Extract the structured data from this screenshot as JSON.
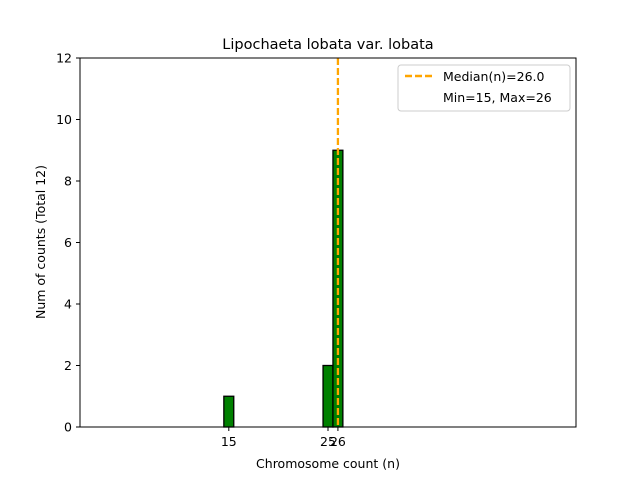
{
  "chart_data": {
    "type": "bar",
    "title": "Lipochaeta lobata var. lobata",
    "xlabel": "Chromosome count (n)",
    "ylabel": "Num of counts      (Total 12)",
    "xlim": [
      0,
      50
    ],
    "ylim": [
      0,
      12
    ],
    "y_ticks": [
      0,
      2,
      4,
      6,
      8,
      10,
      12
    ],
    "x_ticks": [
      15,
      25,
      26
    ],
    "x_tick_labels": [
      "15",
      "25",
      "26"
    ],
    "bars": [
      {
        "x": 15,
        "value": 1
      },
      {
        "x": 25,
        "value": 2
      },
      {
        "x": 26,
        "value": 9
      }
    ],
    "bar_color": "#008000",
    "bar_edge_color": "#000000",
    "median_line": {
      "x": 26,
      "color": "#FFA500"
    },
    "legend": {
      "placement": "top-right",
      "entries": [
        "Median(n)=26.0",
        "Min=15, Max=26"
      ]
    },
    "grid": false
  }
}
